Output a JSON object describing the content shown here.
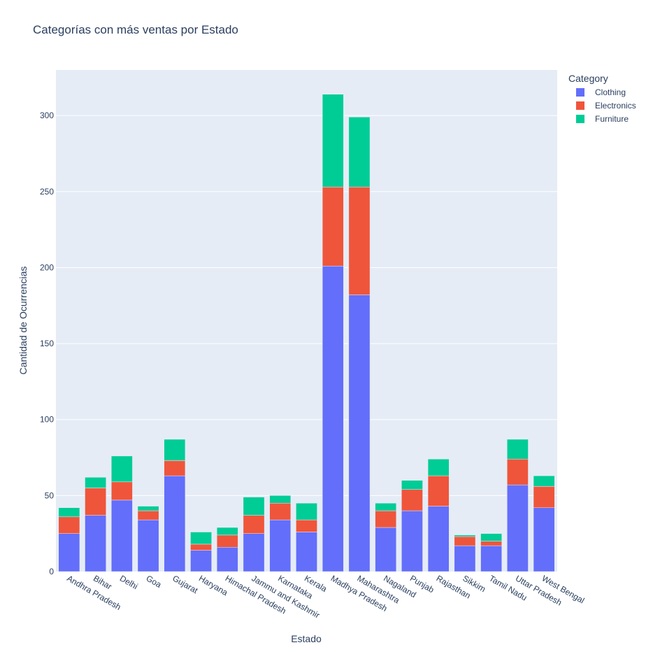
{
  "chart_data": {
    "type": "bar",
    "barmode": "stack",
    "title": "Categorías con más ventas por Estado",
    "xlabel": "Estado",
    "ylabel": "Cantidad de Ocurrencias",
    "ylim": [
      0,
      330
    ],
    "yticks": [
      0,
      50,
      100,
      150,
      200,
      250,
      300
    ],
    "grid": true,
    "legend_title": "Category",
    "legend_position": "top-right",
    "categories": [
      "Andhra Pradesh",
      "Bihar",
      "Delhi",
      "Goa",
      "Gujarat",
      "Haryana",
      "Himachal Pradesh",
      "Jammu and Kashmir",
      "Karnataka",
      "Kerala",
      "Madhya Pradesh",
      "Maharashtra",
      "Nagaland",
      "Punjab",
      "Rajasthan",
      "Sikkim",
      "Tamil Nadu",
      "Uttar Pradesh",
      "West Bengal"
    ],
    "series": [
      {
        "name": "Clothing",
        "color": "#636efa",
        "values": [
          25,
          37,
          47,
          34,
          63,
          14,
          16,
          25,
          34,
          26,
          201,
          182,
          29,
          40,
          43,
          17,
          17,
          57,
          42
        ]
      },
      {
        "name": "Electronics",
        "color": "#ef553b",
        "values": [
          11,
          18,
          12,
          6,
          10,
          4,
          8,
          12,
          11,
          8,
          52,
          71,
          11,
          14,
          20,
          6,
          3,
          17,
          14
        ]
      },
      {
        "name": "Furniture",
        "color": "#00cc96",
        "values": [
          6,
          7,
          17,
          3,
          14,
          8,
          5,
          12,
          5,
          11,
          61,
          46,
          5,
          6,
          11,
          1,
          5,
          13,
          7
        ]
      }
    ]
  }
}
